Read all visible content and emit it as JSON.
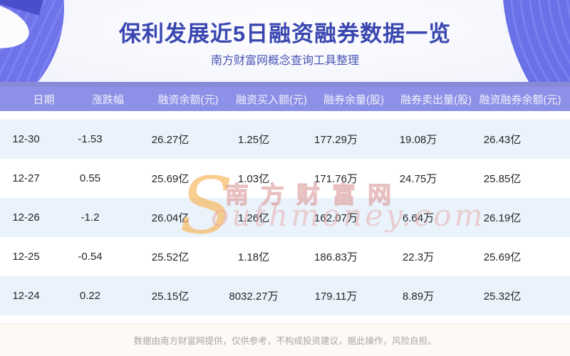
{
  "hero": {
    "title": "保利发展近5日融资融券数据一览",
    "subtitle": "南方财富网概念查询工具整理"
  },
  "chart_data": {
    "type": "table",
    "title": "保利发展近5日融资融券数据一览",
    "columns": [
      "日期",
      "涨跌幅",
      "融资余额(元)",
      "融资买入额(元)",
      "融券余量(股)",
      "融券卖出量(股)",
      "融资融券余额(元)"
    ],
    "rows": [
      [
        "12-30",
        "-1.53",
        "26.27亿",
        "1.25亿",
        "177.29万",
        "19.08万",
        "26.43亿"
      ],
      [
        "12-27",
        "0.55",
        "25.69亿",
        "1.03亿",
        "171.76万",
        "24.75万",
        "25.85亿"
      ],
      [
        "12-26",
        "-1.2",
        "26.04亿",
        "1.26亿",
        "162.07万",
        "6.64万",
        "26.19亿"
      ],
      [
        "12-25",
        "-0.54",
        "25.52亿",
        "1.18亿",
        "186.83万",
        "22.3万",
        "25.69亿"
      ],
      [
        "12-24",
        "0.22",
        "25.15亿",
        "8032.27万",
        "179.11万",
        "8.89万",
        "25.32亿"
      ]
    ],
    "layout": {
      "header_background": "#8c90e6",
      "alt_row_background": "#eaf3fb",
      "row_background": "#ffffff"
    }
  },
  "watermark": {
    "initial": "S",
    "brand": "南方财富网",
    "domain": "outhmoney.com"
  },
  "footer": {
    "disclaimer": "数据由南方财富网提供，仅供参考，不构成投资建议，据此操作，风险自担。"
  },
  "colors": {
    "accent_purple": "#6a70e8",
    "title_blue": "#3a47b0",
    "header_band": "#8c90e6",
    "alt_row_blue": "#eaf3fb",
    "footer_cream": "#fdfaf5"
  }
}
